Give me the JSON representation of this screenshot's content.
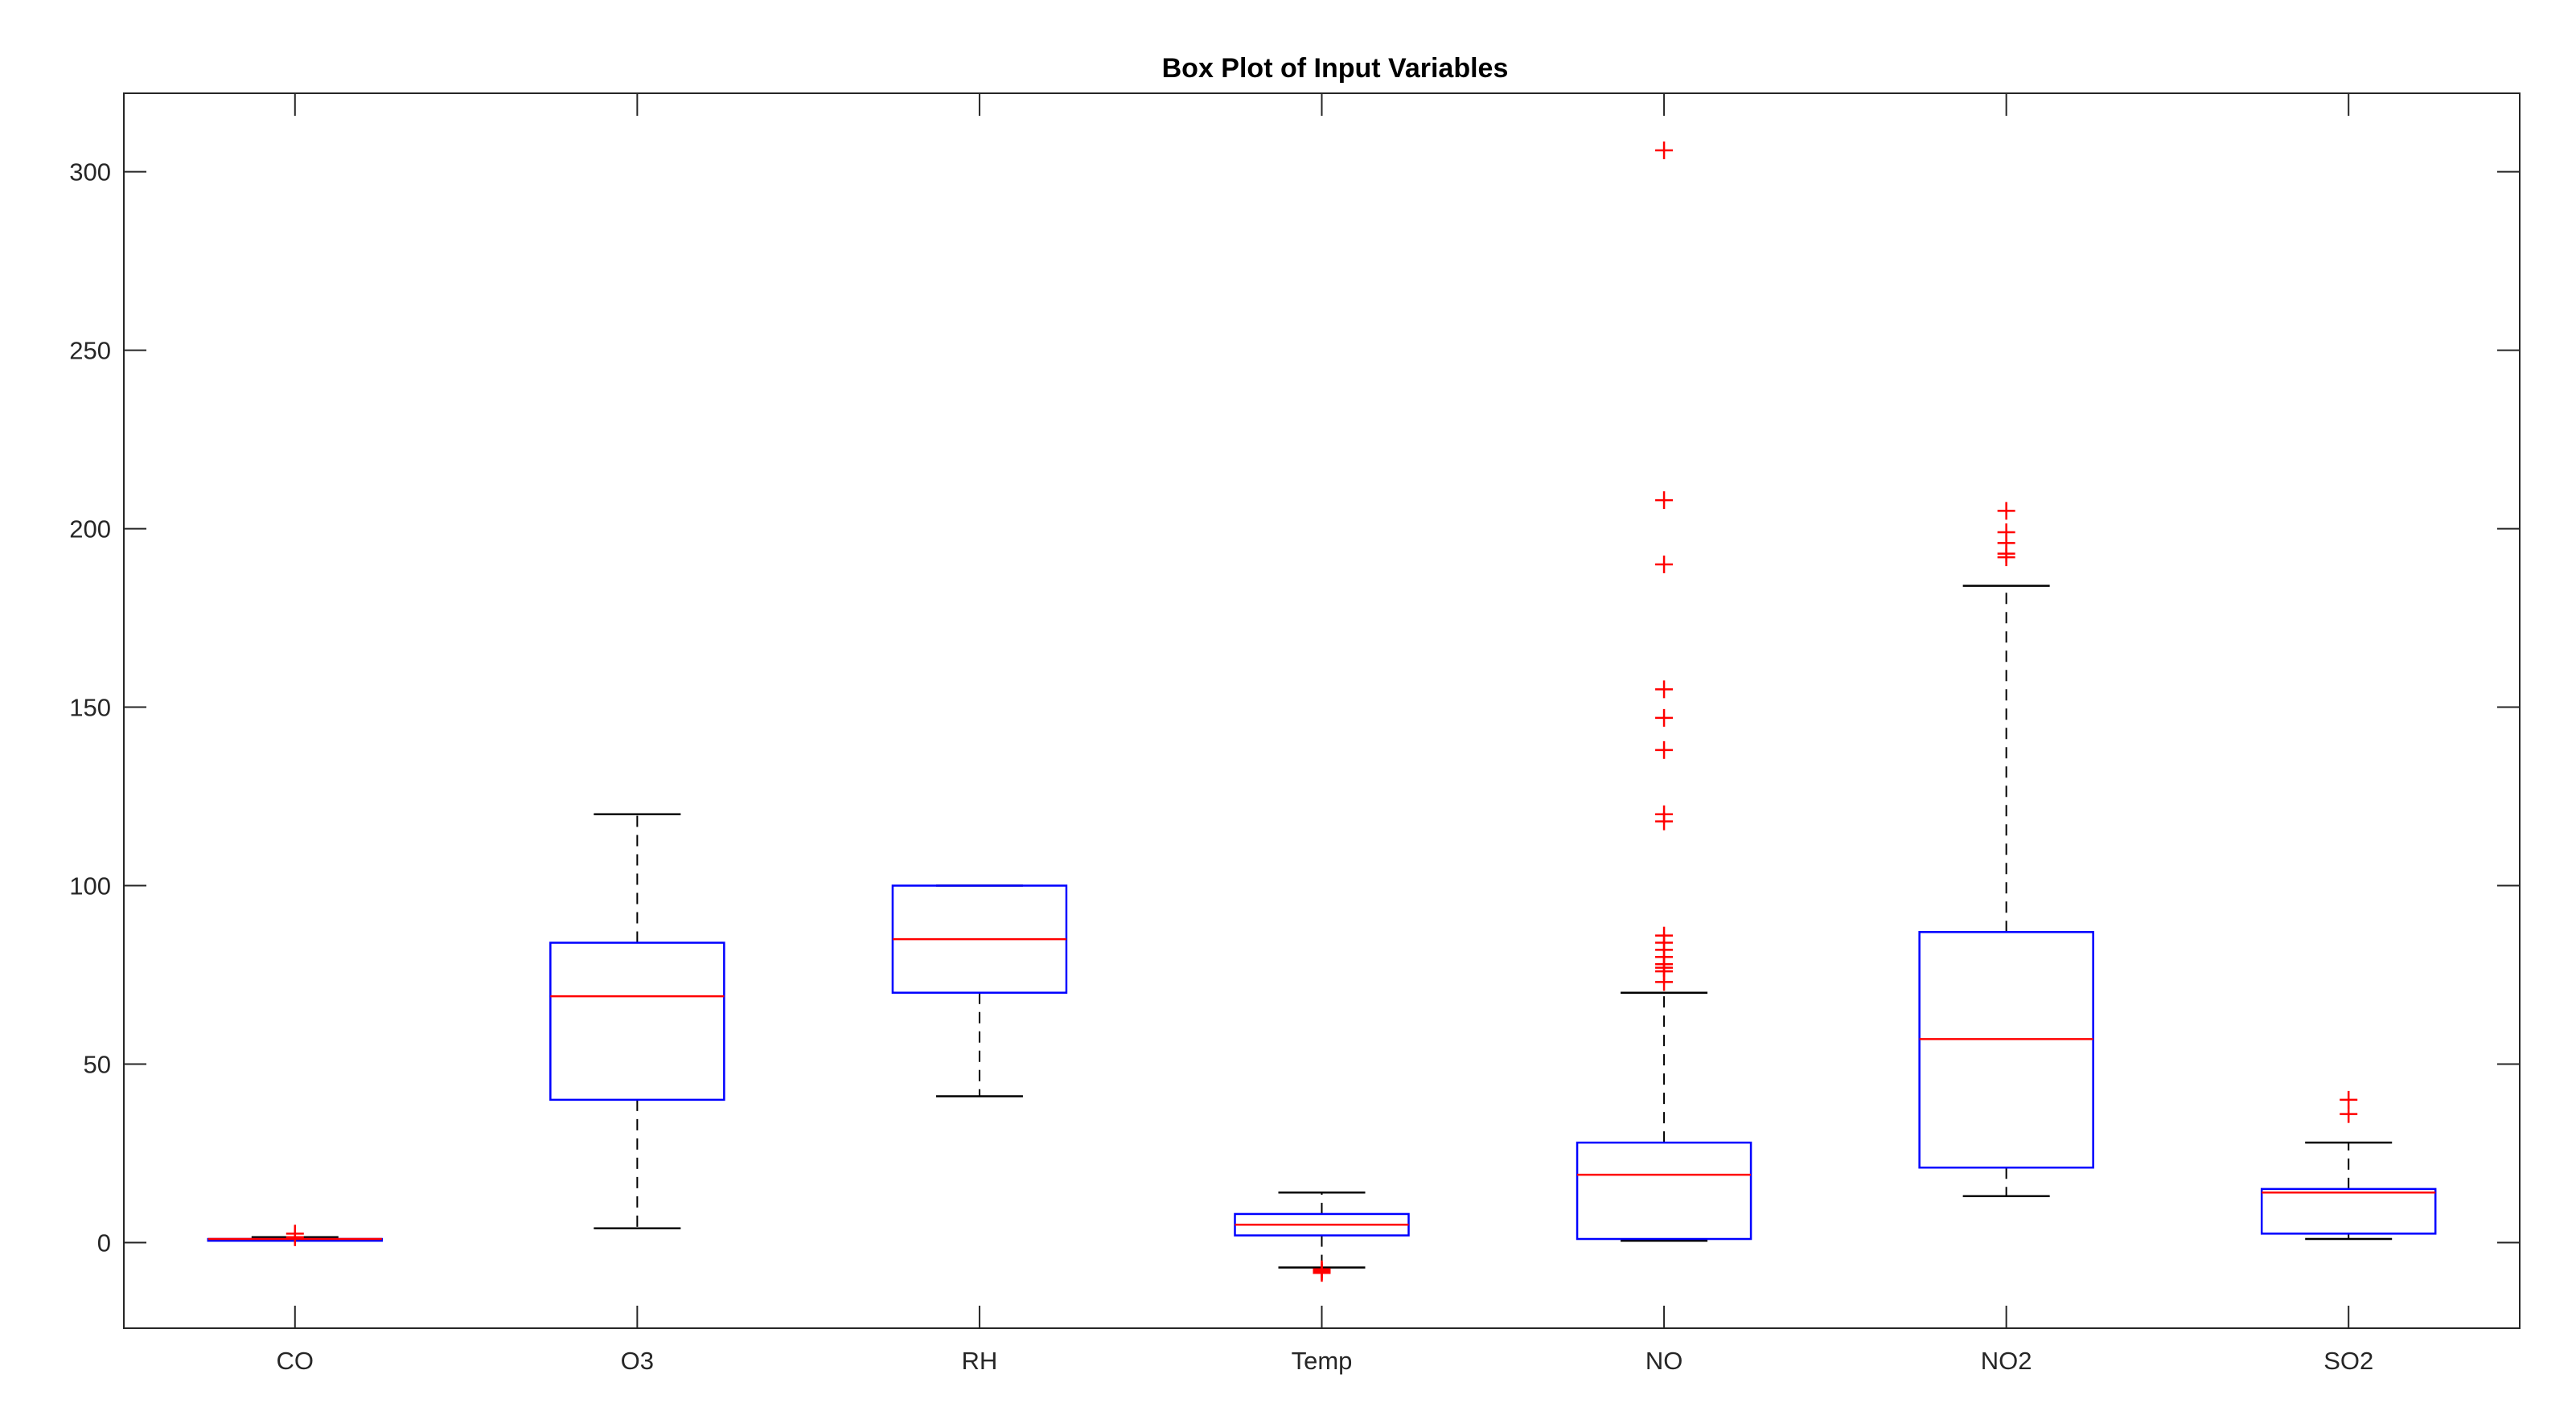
{
  "chart_data": {
    "type": "box",
    "title": "Box Plot of Input Variables",
    "xlabel": "",
    "ylabel": "",
    "ylim": [
      -24,
      322
    ],
    "yticks": [
      0,
      50,
      100,
      150,
      200,
      250,
      300
    ],
    "grid": false,
    "categories": [
      "CO",
      "O3",
      "RH",
      "Temp",
      "NO",
      "NO2",
      "SO2"
    ],
    "boxes": [
      {
        "name": "CO",
        "whisker_low": 0.5,
        "q1": 0.5,
        "median": 1,
        "q3": 1,
        "whisker_high": 1.5,
        "outliers": [
          2.5,
          1.5
        ]
      },
      {
        "name": "O3",
        "whisker_low": 4,
        "q1": 40,
        "median": 69,
        "q3": 84,
        "whisker_high": 120,
        "outliers": []
      },
      {
        "name": "RH",
        "whisker_low": 41,
        "q1": 70,
        "median": 85,
        "q3": 100,
        "whisker_high": 100,
        "outliers": []
      },
      {
        "name": "Temp",
        "whisker_low": -7,
        "q1": 2,
        "median": 5,
        "q3": 8,
        "whisker_high": 14,
        "outliers": [
          -7.5,
          -8,
          -8.5
        ]
      },
      {
        "name": "NO",
        "whisker_low": 0.5,
        "q1": 1,
        "median": 19,
        "q3": 28,
        "whisker_high": 70,
        "outliers": [
          73,
          76,
          77,
          78,
          80,
          82,
          84,
          86,
          118,
          120,
          138,
          147,
          155,
          190,
          208,
          306
        ]
      },
      {
        "name": "NO2",
        "whisker_low": 13,
        "q1": 21,
        "median": 57,
        "q3": 87,
        "whisker_high": 184,
        "outliers": [
          192,
          193,
          196,
          199,
          205
        ]
      },
      {
        "name": "SO2",
        "whisker_low": 1,
        "q1": 2.5,
        "median": 14,
        "q3": 15,
        "whisker_high": 28,
        "outliers": [
          36,
          40
        ]
      }
    ],
    "colors": {
      "box": "#0000ff",
      "median": "#ff0000",
      "whisker": "#000000",
      "outlier": "#ff0000",
      "axes": "#262626"
    }
  }
}
